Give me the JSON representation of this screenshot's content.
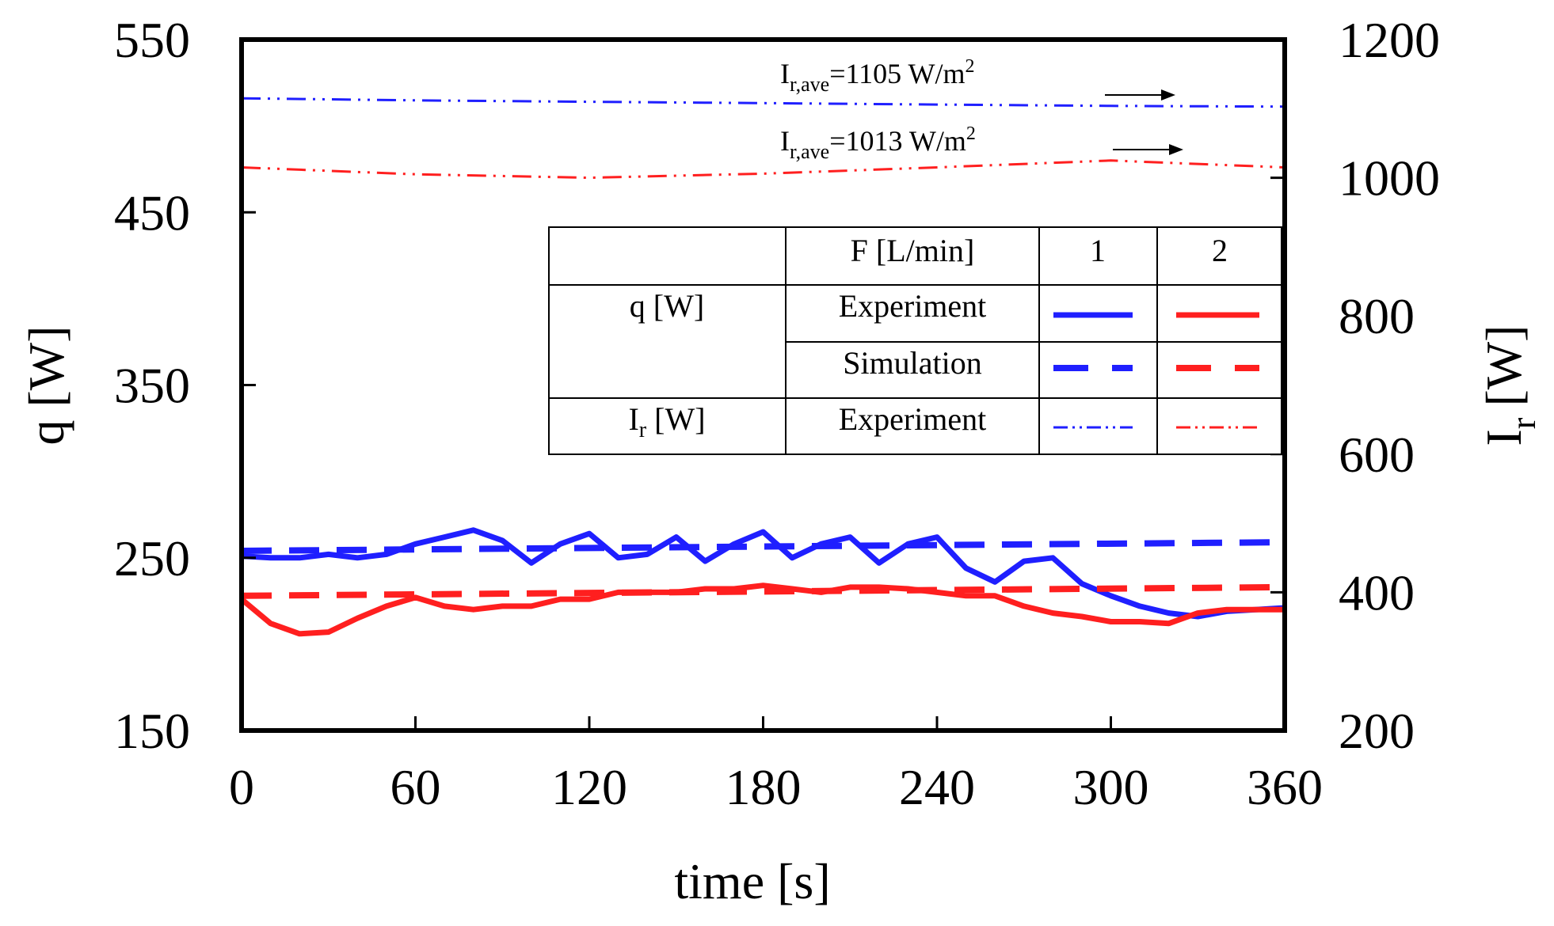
{
  "chart_data": {
    "type": "line",
    "xlabel": "time [s]",
    "ylabel_left": "q [W]",
    "ylabel_right_main": "I",
    "ylabel_right_sub": "r",
    "ylabel_right_unit": "[W]",
    "xlim": [
      0,
      360
    ],
    "ylim_left": [
      150,
      550
    ],
    "ylim_right": [
      200,
      1200
    ],
    "x_ticks": [
      0,
      60,
      120,
      180,
      240,
      300,
      360
    ],
    "x_tick_labels": [
      "0",
      "60",
      "120",
      "180",
      "240",
      "300",
      "360"
    ],
    "y_left_ticks": [
      150,
      250,
      350,
      450,
      550
    ],
    "y_left_tick_labels": [
      "150",
      "250",
      "350",
      "450",
      "550"
    ],
    "y_right_ticks": [
      200,
      400,
      600,
      800,
      1000,
      1200
    ],
    "y_right_tick_labels": [
      "200",
      "400",
      "600",
      "800",
      "1000",
      "1200"
    ],
    "grid": false,
    "series": [
      {
        "name": "q Experiment F=1",
        "axis": "left",
        "color": "#1f1fff",
        "style": "solid-thick",
        "x": [
          0,
          10,
          20,
          30,
          40,
          50,
          60,
          70,
          80,
          90,
          100,
          110,
          120,
          130,
          140,
          150,
          160,
          170,
          180,
          190,
          200,
          210,
          220,
          230,
          240,
          250,
          260,
          270,
          280,
          290,
          300,
          310,
          320,
          330,
          340,
          350,
          360
        ],
        "values": [
          251,
          250,
          250,
          252,
          250,
          252,
          258,
          262,
          266,
          260,
          247,
          258,
          264,
          250,
          252,
          262,
          248,
          258,
          265,
          250,
          258,
          262,
          247,
          258,
          262,
          244,
          236,
          248,
          250,
          235,
          228,
          222,
          218,
          216,
          219,
          220,
          221
        ]
      },
      {
        "name": "q Experiment F=2",
        "axis": "left",
        "color": "#ff1f1f",
        "style": "solid-thick",
        "x": [
          0,
          10,
          20,
          30,
          40,
          50,
          60,
          70,
          80,
          90,
          100,
          110,
          120,
          130,
          140,
          150,
          160,
          170,
          180,
          190,
          200,
          210,
          220,
          230,
          240,
          250,
          260,
          270,
          280,
          290,
          300,
          310,
          320,
          330,
          340,
          350,
          360
        ],
        "values": [
          226,
          212,
          206,
          207,
          215,
          222,
          227,
          222,
          220,
          222,
          222,
          226,
          226,
          230,
          230,
          230,
          232,
          232,
          234,
          232,
          230,
          233,
          233,
          232,
          230,
          228,
          228,
          222,
          218,
          216,
          213,
          213,
          212,
          218,
          220,
          220,
          220
        ]
      },
      {
        "name": "q Simulation F=1",
        "axis": "left",
        "color": "#1f1fff",
        "style": "dashed",
        "x": [
          0,
          360
        ],
        "values": [
          254,
          259
        ]
      },
      {
        "name": "q Simulation F=2",
        "axis": "left",
        "color": "#ff1f1f",
        "style": "dashed",
        "x": [
          0,
          360
        ],
        "values": [
          228,
          233
        ]
      },
      {
        "name": "Ir Experiment F=1",
        "axis": "right",
        "color": "#1f1fff",
        "style": "dash-dot-dot",
        "x": [
          0,
          60,
          120,
          180,
          240,
          300,
          360
        ],
        "values": [
          1115,
          1112,
          1110,
          1108,
          1106,
          1104,
          1103
        ]
      },
      {
        "name": "Ir Experiment F=2",
        "axis": "right",
        "color": "#ff1f1f",
        "style": "dash-dot-dot",
        "x": [
          0,
          60,
          120,
          180,
          240,
          300,
          360
        ],
        "values": [
          1015,
          1005,
          1000,
          1006,
          1015,
          1025,
          1015
        ]
      }
    ],
    "annotations": [
      {
        "main": "I",
        "sub": "r,ave",
        "text": "=1105 W/m",
        "sup": "2"
      },
      {
        "main": "I",
        "sub": "r,ave",
        "text": "=1013 W/m",
        "sup": "2"
      }
    ],
    "legend": {
      "placement": "upper-right",
      "header": [
        "",
        "F [L/min]",
        "1",
        "2"
      ],
      "rows": [
        {
          "quantity": "q [W]",
          "type": "Experiment",
          "style": "solid-thick"
        },
        {
          "quantity": "",
          "type": "Simulation",
          "style": "dashed"
        },
        {
          "quantity_main": "I",
          "quantity_sub": "r",
          "quantity_unit": " [W]",
          "type": "Experiment",
          "style": "dash-dot-dot"
        }
      ],
      "colors": [
        "#1f1fff",
        "#ff1f1f"
      ]
    }
  }
}
